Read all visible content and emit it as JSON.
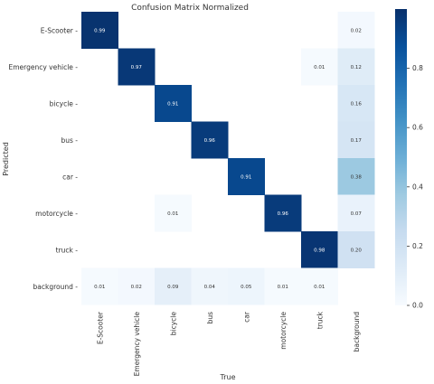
{
  "chart_data": {
    "type": "heatmap",
    "title": "Confusion Matrix Normalized",
    "xlabel": "True",
    "ylabel": "Predicted",
    "x_categories": [
      "E-Scooter",
      "Emergency vehicle",
      "bicycle",
      "bus",
      "car",
      "motorcycle",
      "truck",
      "background"
    ],
    "y_categories": [
      "E-Scooter",
      "Emergency vehicle",
      "bicycle",
      "bus",
      "car",
      "motorcycle",
      "truck",
      "background"
    ],
    "values": [
      [
        0.99,
        null,
        null,
        null,
        null,
        null,
        null,
        0.02
      ],
      [
        null,
        0.97,
        null,
        null,
        null,
        null,
        0.01,
        0.12
      ],
      [
        null,
        null,
        0.91,
        null,
        null,
        null,
        null,
        0.16
      ],
      [
        null,
        null,
        null,
        0.96,
        null,
        null,
        null,
        0.17
      ],
      [
        null,
        null,
        null,
        null,
        0.91,
        null,
        null,
        0.38
      ],
      [
        null,
        null,
        0.01,
        null,
        null,
        0.96,
        null,
        0.07
      ],
      [
        null,
        null,
        null,
        null,
        null,
        null,
        0.98,
        0.2
      ],
      [
        0.01,
        0.02,
        0.09,
        0.04,
        0.05,
        0.01,
        0.01,
        null
      ]
    ],
    "colorbar": {
      "range": [
        0,
        1
      ],
      "ticks": [
        "0.0",
        "0.2",
        "0.4",
        "0.6",
        "0.8"
      ],
      "colormap": "Blues"
    }
  }
}
